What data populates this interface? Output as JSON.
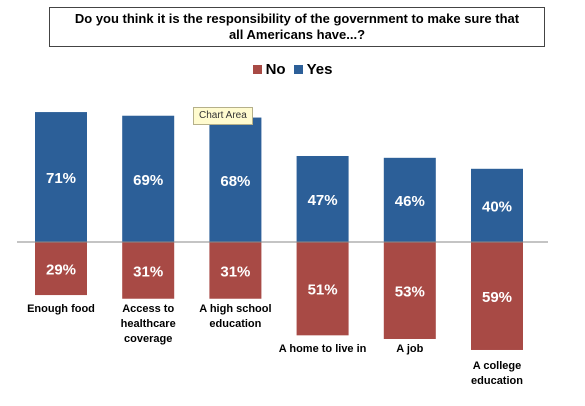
{
  "chart_data": {
    "type": "bar",
    "title": "Do you think it is the responsibility of the government to make sure that all Americans have...?",
    "categories": [
      [
        "Enough food"
      ],
      [
        "Access to",
        "healthcare",
        "coverage"
      ],
      [
        "A high school",
        "education"
      ],
      [
        "A home to live in"
      ],
      [
        "A job"
      ],
      [
        "A college",
        "education"
      ]
    ],
    "series": [
      {
        "name": "Yes",
        "values": [
          71,
          69,
          68,
          47,
          46,
          40
        ],
        "labels": [
          "71%",
          "69%",
          "68%",
          "47%",
          "46%",
          "40%"
        ],
        "color": "#2c5f98",
        "direction": "up"
      },
      {
        "name": "No",
        "values": [
          29,
          31,
          31,
          51,
          53,
          59
        ],
        "labels": [
          "29%",
          "31%",
          "31%",
          "51%",
          "53%",
          "59%"
        ],
        "color": "#a84a45",
        "direction": "down"
      }
    ],
    "legend": [
      "No",
      "Yes"
    ],
    "legend_position": "top",
    "grid": false,
    "bar_text_color": "#ffffff"
  },
  "tooltip": "Chart Area"
}
